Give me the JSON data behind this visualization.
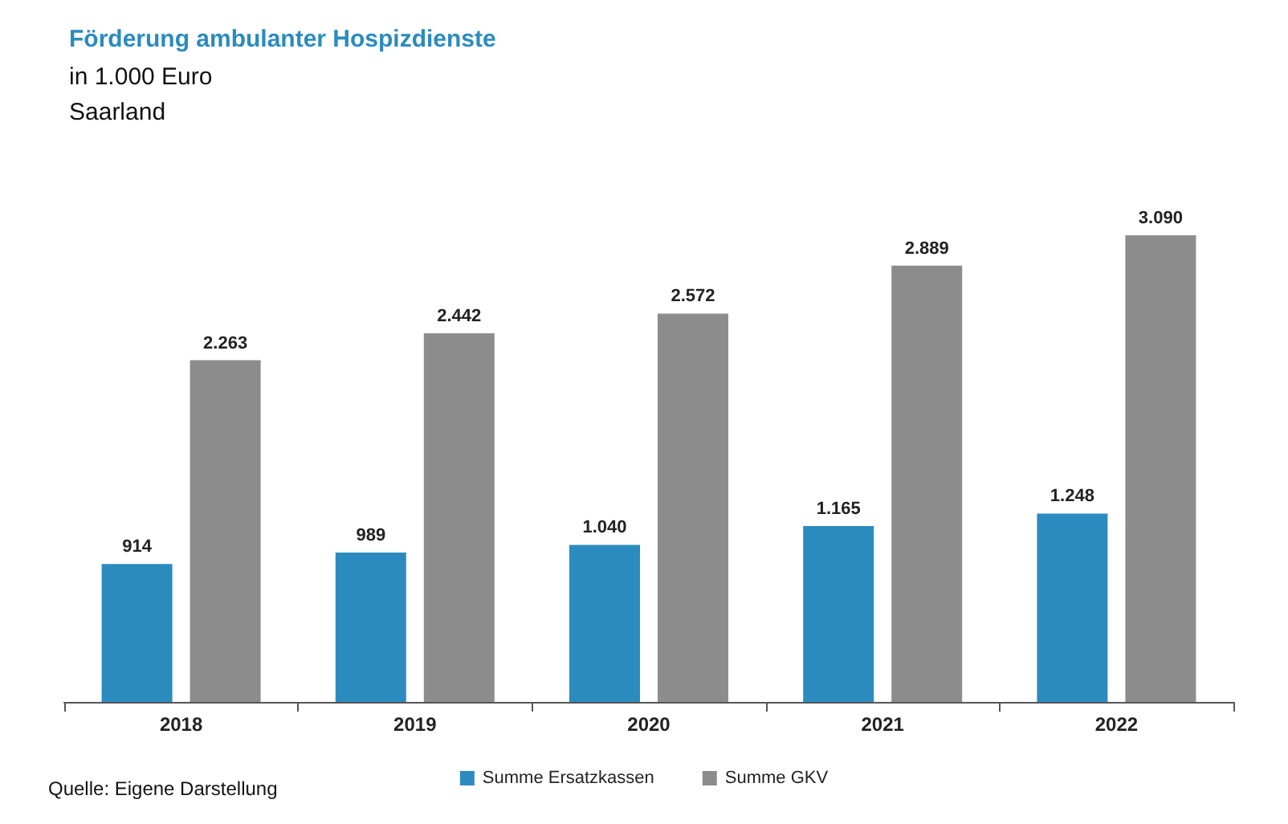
{
  "chart_data": {
    "type": "bar",
    "title": "Förderung ambulanter Hospizdienste",
    "subtitle": "in 1.000 Euro\nSaarland",
    "categories": [
      "2018",
      "2019",
      "2020",
      "2021",
      "2022"
    ],
    "series": [
      {
        "name": "Summe Ersatzkassen",
        "color": "#2b8bbf",
        "values": [
          914,
          989,
          1040,
          1165,
          1248
        ],
        "value_labels": [
          "914",
          "989",
          "1.040",
          "1.165",
          "1.248"
        ]
      },
      {
        "name": "Summe GKV",
        "color": "#8c8c8c",
        "values": [
          2263,
          2442,
          2572,
          2889,
          3090
        ],
        "value_labels": [
          "2.263",
          "2.442",
          "2.572",
          "2.889",
          "3.090"
        ]
      }
    ],
    "legend": "bottom",
    "annotations": [
      "Quelle: Eigene Darstellung"
    ]
  }
}
